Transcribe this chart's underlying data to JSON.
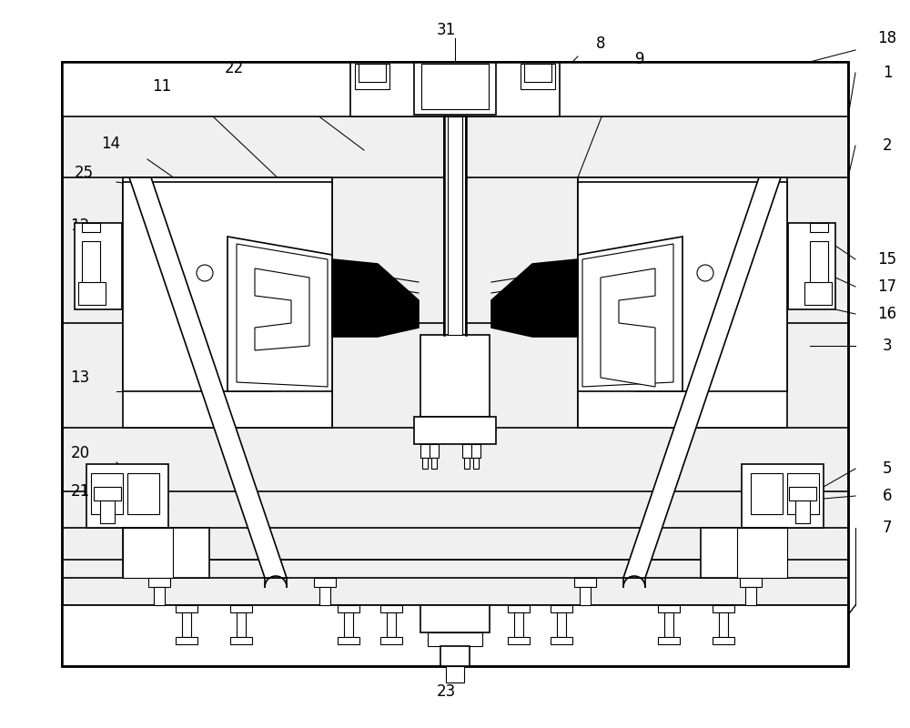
{
  "bg_color": "#ffffff",
  "line_color": "#000000",
  "fig_width": 10.0,
  "fig_height": 8.0,
  "dpi": 100
}
